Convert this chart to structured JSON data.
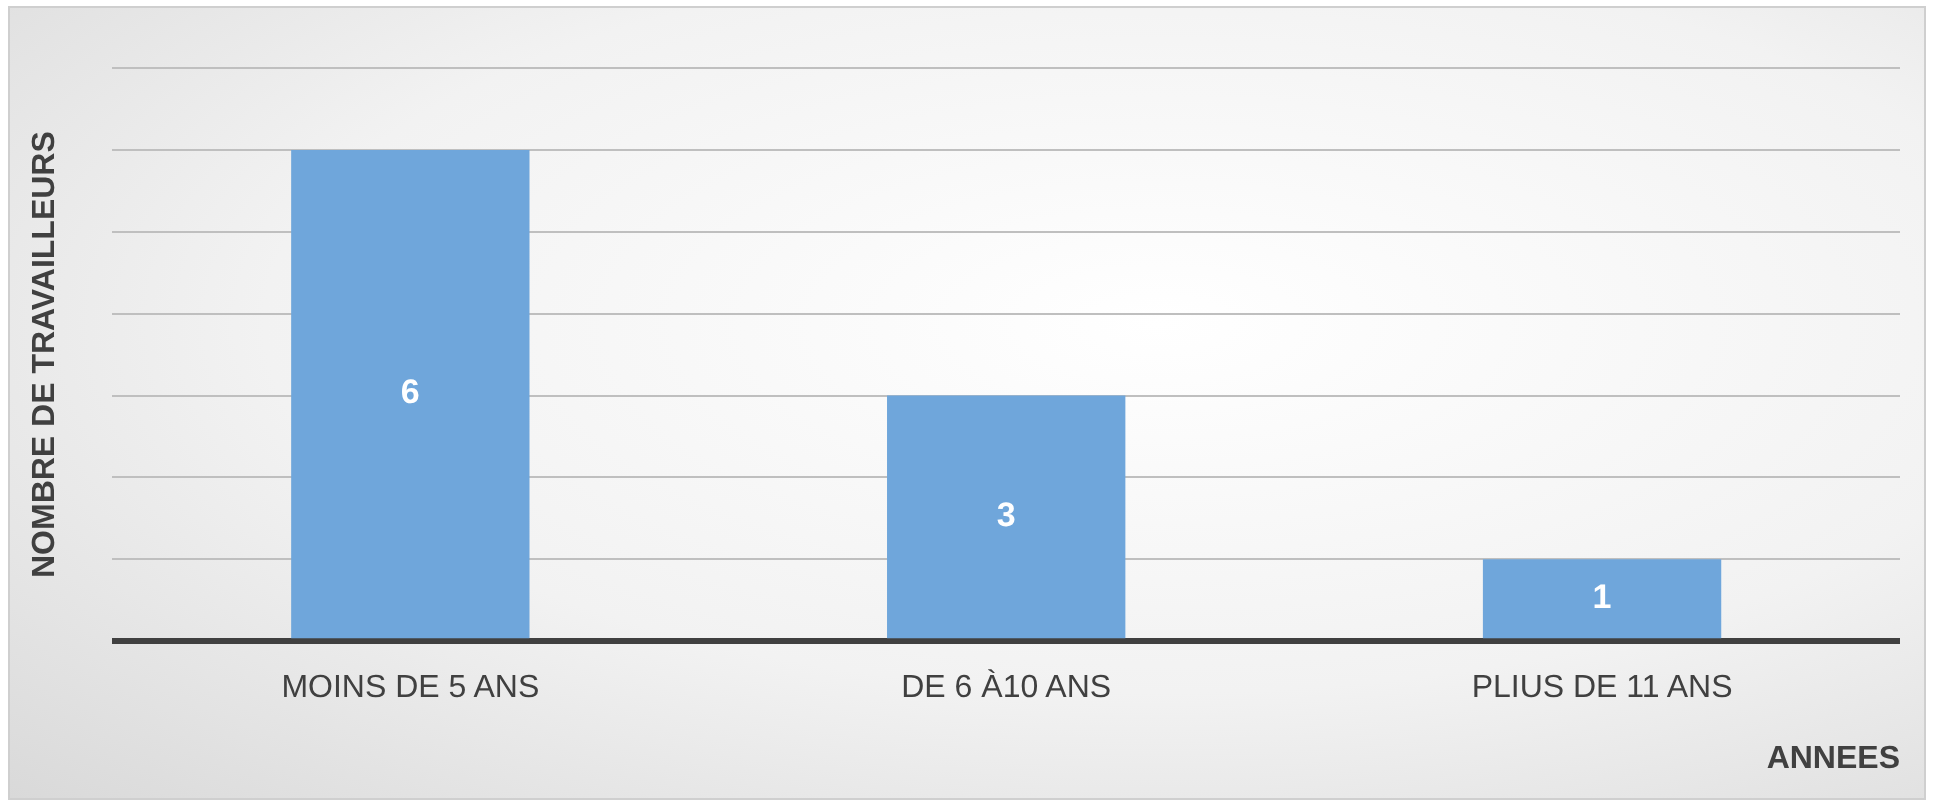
{
  "chart_data": {
    "type": "bar",
    "xlabel": "ANNEES",
    "ylabel": "NOMBRE DE TRAVAILLEURS",
    "categories": [
      "MOINS DE 5 ANS",
      "DE 6 À10 ANS",
      "PLIUS DE 11 ANS"
    ],
    "values": [
      6,
      3,
      1
    ],
    "color": "#6fa6db",
    "ylim": [
      0,
      7
    ],
    "yticks": [
      0,
      1,
      2,
      3,
      4,
      5,
      6,
      7
    ],
    "grid": "y",
    "tick_labels": "x",
    "data_labels": true,
    "legend": false
  }
}
